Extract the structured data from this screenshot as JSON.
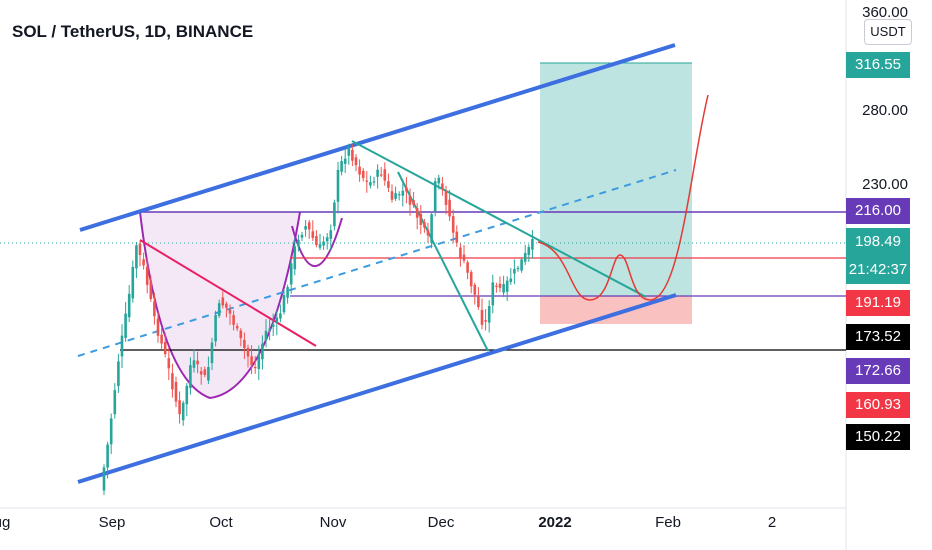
{
  "header": {
    "title": "SOL / TetherUS, 1D, BINANCE"
  },
  "currency_button": "USDT",
  "y_axis": {
    "ticks": [
      "360.00",
      "280.00",
      "230.00"
    ]
  },
  "x_axis": {
    "ticks": [
      "ug",
      "Sep",
      "Oct",
      "Nov",
      "Dec",
      "2022",
      "Feb",
      "2"
    ],
    "bold": "2022"
  },
  "price_badges": [
    {
      "label": "316.55",
      "color": "#26a69a"
    },
    {
      "label": "216.00",
      "color": "#673ab7"
    },
    {
      "label": "198.49",
      "sublabel": "21:42:37",
      "color": "#26a69a"
    },
    {
      "label": "191.19",
      "color": "#f23645"
    },
    {
      "label": "173.52",
      "color": "#000000"
    },
    {
      "label": "172.66",
      "color": "#673ab7"
    },
    {
      "label": "160.93",
      "color": "#f23645"
    },
    {
      "label": "150.22",
      "color": "#000000"
    }
  ],
  "colors": {
    "up": "#26a69a",
    "down": "#ef5350",
    "channel": "#3d6fe0",
    "purple": "#673ab7",
    "red": "#f23645",
    "pink": "#e91e63",
    "cup_fill": "#f3e5f5"
  },
  "chart_data": {
    "type": "candlestick",
    "symbol": "SOL / TetherUS",
    "interval": "1D",
    "exchange": "BINANCE",
    "last_price": 198.49,
    "countdown": "21:42:37",
    "long_position": {
      "target": 316.55,
      "entry": 191.19,
      "stop": 160.93
    },
    "horizontal_levels": [
      216.0,
      191.19,
      173.52,
      172.66,
      150.22
    ]
  }
}
